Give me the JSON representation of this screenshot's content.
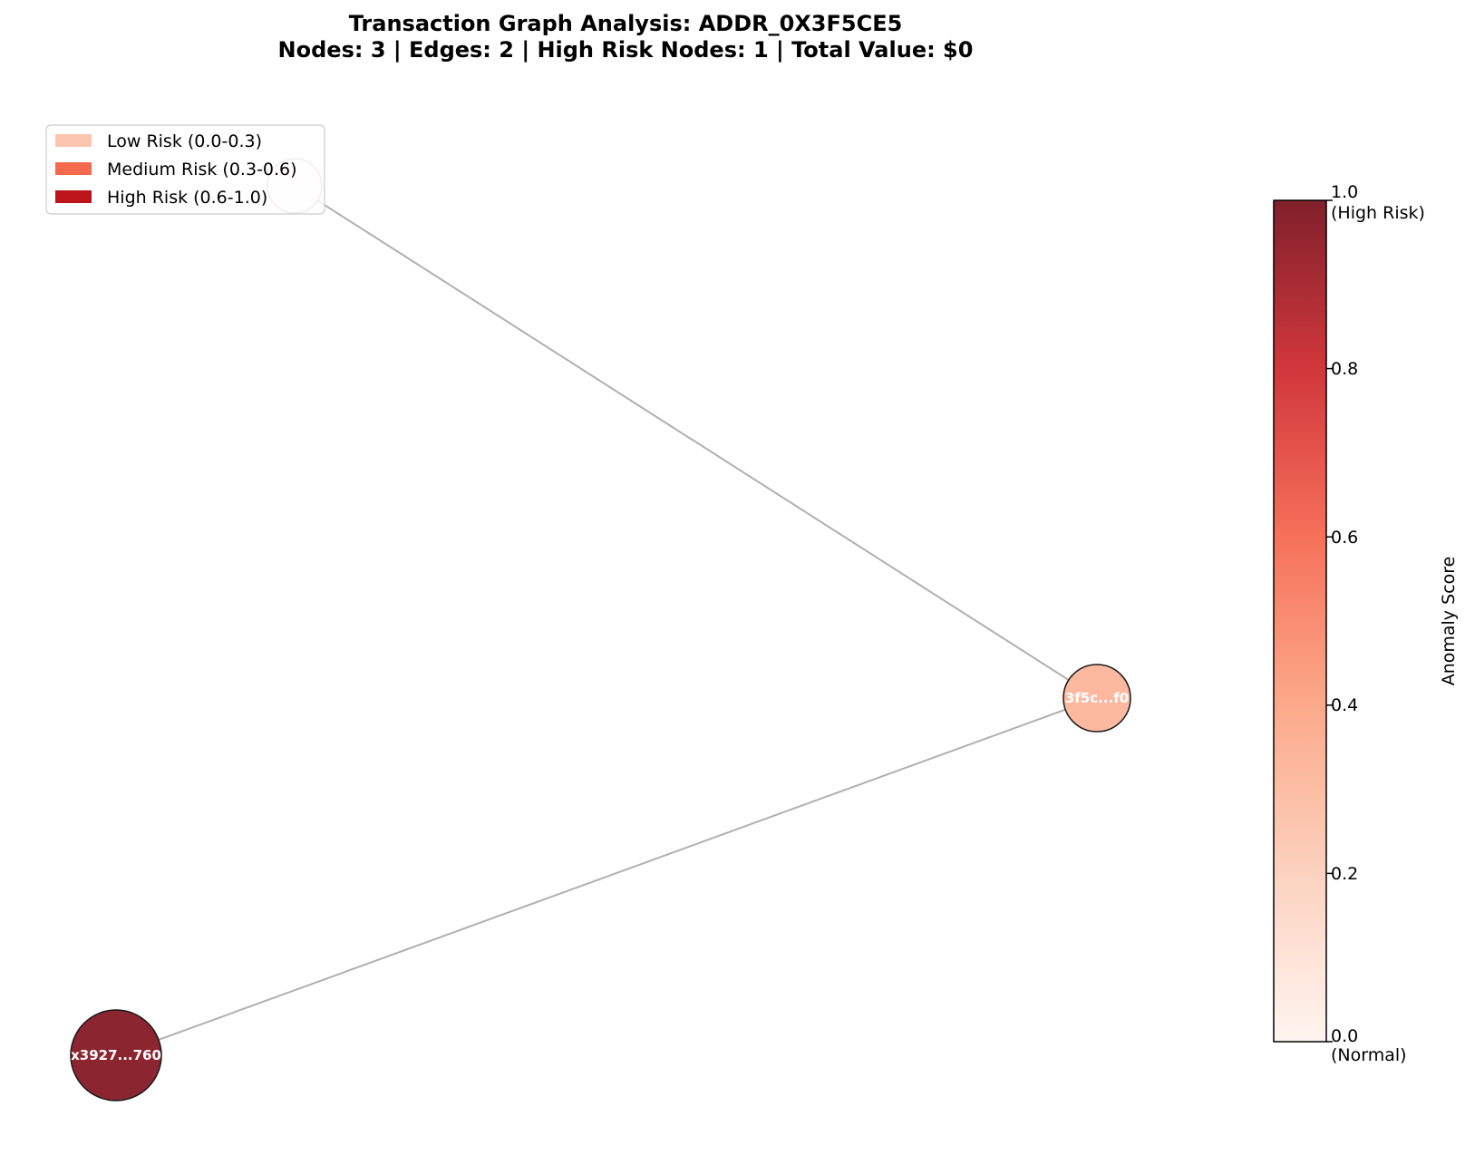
{
  "title": {
    "line1": "Transaction Graph Analysis: ADDR_0X3F5CE5",
    "line2": "Nodes: 3 | Edges: 2 | High Risk Nodes: 1 | Total Value: $0"
  },
  "legend": {
    "items": [
      {
        "label": "Low Risk (0.0-0.3)",
        "color": "#fcc5af"
      },
      {
        "label": "Medium Risk (0.3-0.6)",
        "color": "#f5694d"
      },
      {
        "label": "High Risk (0.6-1.0)",
        "color": "#bc141a"
      }
    ]
  },
  "graph": {
    "nodes": [
      {
        "id": "n-top",
        "label": "",
        "score": 0.0,
        "color": "#fff6f2"
      },
      {
        "id": "n-center",
        "label": "3f5c...f0",
        "score": 0.3,
        "color": "#fcb9a0"
      },
      {
        "id": "n-bottom",
        "label": "x3927...760",
        "score": 1.0,
        "color": "#8b2530"
      }
    ],
    "edges": [
      {
        "from": "n-top",
        "to": "n-center"
      },
      {
        "from": "n-bottom",
        "to": "n-center"
      }
    ]
  },
  "colorbar": {
    "label": "Anomaly Score",
    "ticks": [
      "0.0",
      "0.2",
      "0.4",
      "0.6",
      "0.8",
      "1.0"
    ],
    "top_note": "(High Risk)",
    "bottom_note": "(Normal)"
  }
}
